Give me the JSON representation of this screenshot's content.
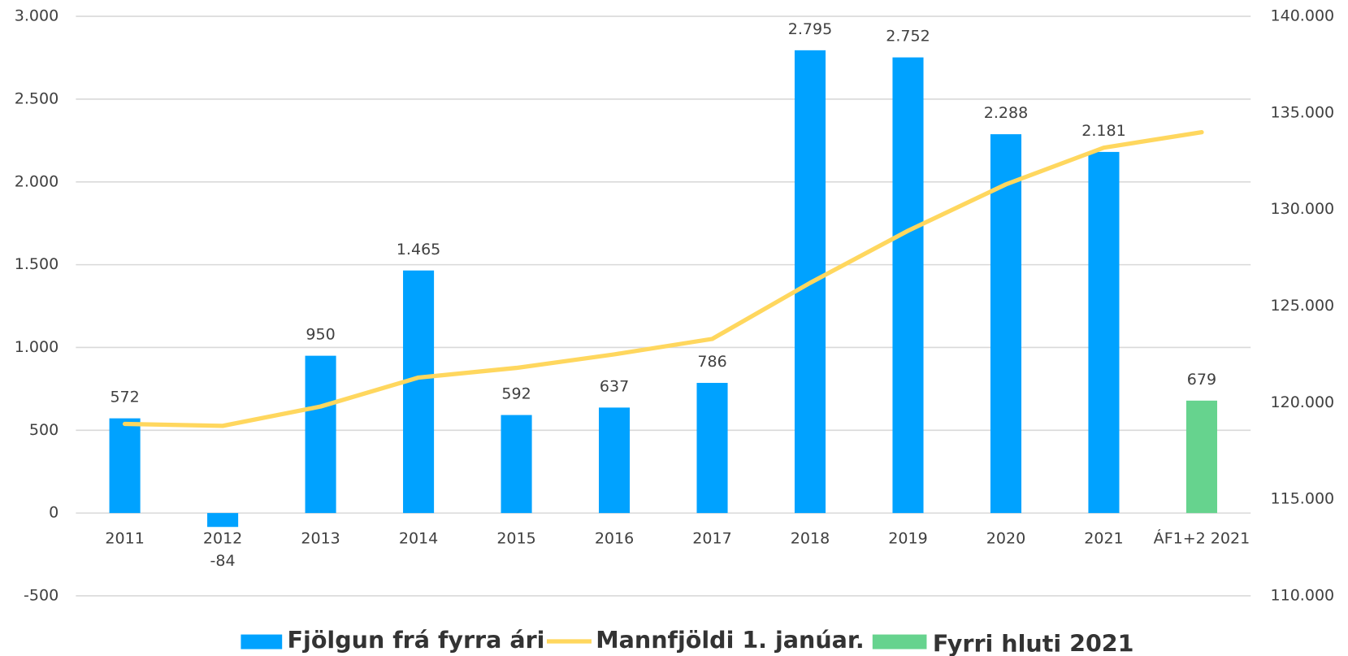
{
  "chart_data": {
    "type": "bar",
    "categories": [
      "2011",
      "2012",
      "2013",
      "2014",
      "2015",
      "2016",
      "2017",
      "2018",
      "2019",
      "2020",
      "2021",
      "ÁF1+2 2021"
    ],
    "series": [
      {
        "name": "Fjölgun frá fyrra ári",
        "type": "bar",
        "color": "#00a2ff",
        "values": [
          572,
          -84,
          950,
          1465,
          592,
          637,
          786,
          2795,
          2752,
          2288,
          2181,
          null
        ],
        "value_labels": [
          "572",
          "-84",
          "950",
          "1.465",
          "592",
          "637",
          "786",
          "2.795",
          "2.752",
          "2.288",
          "2.181",
          null
        ]
      },
      {
        "name": "Mannfjöldi 1. janúar.",
        "type": "line",
        "axis": "y2",
        "color": "#ffd75e",
        "values": [
          118900,
          118800,
          119800,
          121300,
          121800,
          122500,
          123300,
          126200,
          128900,
          131300,
          133200,
          134000
        ]
      },
      {
        "name": "Fyrri hluti 2021",
        "type": "bar",
        "color": "#66d38e",
        "values": [
          null,
          null,
          null,
          null,
          null,
          null,
          null,
          null,
          null,
          null,
          null,
          679
        ],
        "value_labels": [
          null,
          null,
          null,
          null,
          null,
          null,
          null,
          null,
          null,
          null,
          null,
          "679"
        ]
      }
    ],
    "ylim": [
      -500,
      3000
    ],
    "yticks": [
      -500,
      0,
      500,
      {
        "value": 1000,
        "label": "1.000"
      },
      {
        "value": 1500,
        "label": "1.500"
      },
      {
        "value": 2000,
        "label": "2.000"
      },
      {
        "value": 2500,
        "label": "2.500"
      },
      {
        "value": 3000,
        "label": "3.000"
      }
    ],
    "y2lim": [
      110000,
      140000
    ],
    "y2ticks": [
      {
        "value": 110000,
        "label": "110.000"
      },
      {
        "value": 115000,
        "label": "115.000"
      },
      {
        "value": 120000,
        "label": "120.000"
      },
      {
        "value": 125000,
        "label": "125.000"
      },
      {
        "value": 130000,
        "label": "130.000"
      },
      {
        "value": 135000,
        "label": "135.000"
      },
      {
        "value": 140000,
        "label": "140.000"
      }
    ],
    "grid": true,
    "legend": "bottom"
  }
}
